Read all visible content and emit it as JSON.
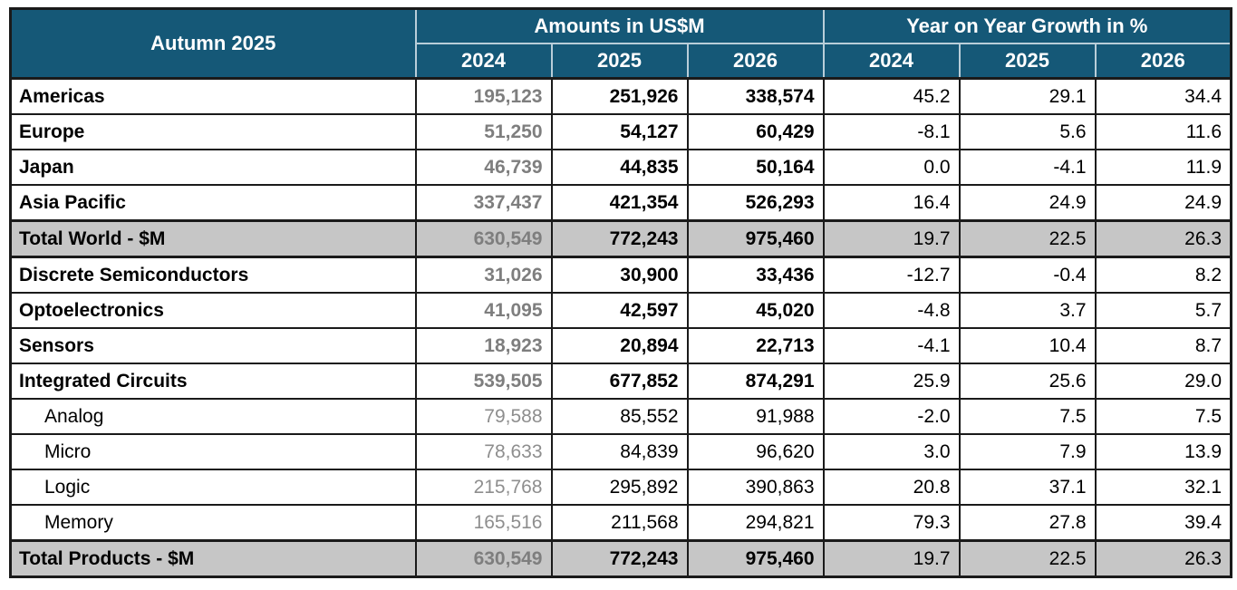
{
  "colors": {
    "header_bg": "#155877",
    "header_text": "#ffffff",
    "header_divider": "#b9ced9",
    "total_row_bg": "#c6c6c6",
    "muted_value_text": "#7e7e7e",
    "border": "#1a1a1a"
  },
  "header": {
    "title": "Autumn 2025",
    "groups": [
      {
        "label": "Amounts in US$M",
        "years": [
          "2024",
          "2025",
          "2026"
        ]
      },
      {
        "label": "Year on Year Growth in %",
        "years": [
          "2024",
          "2025",
          "2026"
        ]
      }
    ]
  },
  "rows": [
    {
      "label": "Americas",
      "style": "main",
      "amounts": [
        "195,123",
        "251,926",
        "338,574"
      ],
      "growth": [
        "45.2",
        "29.1",
        "34.4"
      ]
    },
    {
      "label": "Europe",
      "style": "main",
      "amounts": [
        "51,250",
        "54,127",
        "60,429"
      ],
      "growth": [
        "-8.1",
        "5.6",
        "11.6"
      ]
    },
    {
      "label": "Japan",
      "style": "main",
      "amounts": [
        "46,739",
        "44,835",
        "50,164"
      ],
      "growth": [
        "0.0",
        "-4.1",
        "11.9"
      ]
    },
    {
      "label": "Asia Pacific",
      "style": "main",
      "amounts": [
        "337,437",
        "421,354",
        "526,293"
      ],
      "growth": [
        "16.4",
        "24.9",
        "24.9"
      ]
    },
    {
      "label": "Total World - $M",
      "style": "total",
      "amounts": [
        "630,549",
        "772,243",
        "975,460"
      ],
      "growth": [
        "19.7",
        "22.5",
        "26.3"
      ]
    },
    {
      "label": "Discrete Semiconductors",
      "style": "main",
      "amounts": [
        "31,026",
        "30,900",
        "33,436"
      ],
      "growth": [
        "-12.7",
        "-0.4",
        "8.2"
      ]
    },
    {
      "label": "Optoelectronics",
      "style": "main",
      "amounts": [
        "41,095",
        "42,597",
        "45,020"
      ],
      "growth": [
        "-4.8",
        "3.7",
        "5.7"
      ]
    },
    {
      "label": "Sensors",
      "style": "main",
      "amounts": [
        "18,923",
        "20,894",
        "22,713"
      ],
      "growth": [
        "-4.1",
        "10.4",
        "8.7"
      ]
    },
    {
      "label": "Integrated Circuits",
      "style": "main",
      "amounts": [
        "539,505",
        "677,852",
        "874,291"
      ],
      "growth": [
        "25.9",
        "25.6",
        "29.0"
      ]
    },
    {
      "label": "Analog",
      "style": "sub",
      "amounts": [
        "79,588",
        "85,552",
        "91,988"
      ],
      "growth": [
        "-2.0",
        "7.5",
        "7.5"
      ]
    },
    {
      "label": "Micro",
      "style": "sub",
      "amounts": [
        "78,633",
        "84,839",
        "96,620"
      ],
      "growth": [
        "3.0",
        "7.9",
        "13.9"
      ]
    },
    {
      "label": "Logic",
      "style": "sub",
      "amounts": [
        "215,768",
        "295,892",
        "390,863"
      ],
      "growth": [
        "20.8",
        "37.1",
        "32.1"
      ]
    },
    {
      "label": "Memory",
      "style": "sub",
      "amounts": [
        "165,516",
        "211,568",
        "294,821"
      ],
      "growth": [
        "79.3",
        "27.8",
        "39.4"
      ]
    },
    {
      "label": "Total Products - $M",
      "style": "total",
      "amounts": [
        "630,549",
        "772,243",
        "975,460"
      ],
      "growth": [
        "19.7",
        "22.5",
        "26.3"
      ]
    }
  ],
  "chart_data": {
    "type": "table",
    "title": "Autumn 2025",
    "column_groups": [
      "Amounts in US$M",
      "Year on Year Growth in %"
    ],
    "columns": [
      "2024",
      "2025",
      "2026",
      "2024",
      "2025",
      "2026"
    ],
    "rows": [
      {
        "label": "Americas",
        "amounts_usd_m": [
          195123,
          251926,
          338574
        ],
        "yoy_growth_pct": [
          45.2,
          29.1,
          34.4
        ]
      },
      {
        "label": "Europe",
        "amounts_usd_m": [
          51250,
          54127,
          60429
        ],
        "yoy_growth_pct": [
          -8.1,
          5.6,
          11.6
        ]
      },
      {
        "label": "Japan",
        "amounts_usd_m": [
          46739,
          44835,
          50164
        ],
        "yoy_growth_pct": [
          0.0,
          -4.1,
          11.9
        ]
      },
      {
        "label": "Asia Pacific",
        "amounts_usd_m": [
          337437,
          421354,
          526293
        ],
        "yoy_growth_pct": [
          16.4,
          24.9,
          24.9
        ]
      },
      {
        "label": "Total World - $M",
        "amounts_usd_m": [
          630549,
          772243,
          975460
        ],
        "yoy_growth_pct": [
          19.7,
          22.5,
          26.3
        ]
      },
      {
        "label": "Discrete Semiconductors",
        "amounts_usd_m": [
          31026,
          30900,
          33436
        ],
        "yoy_growth_pct": [
          -12.7,
          -0.4,
          8.2
        ]
      },
      {
        "label": "Optoelectronics",
        "amounts_usd_m": [
          41095,
          42597,
          45020
        ],
        "yoy_growth_pct": [
          -4.8,
          3.7,
          5.7
        ]
      },
      {
        "label": "Sensors",
        "amounts_usd_m": [
          18923,
          20894,
          22713
        ],
        "yoy_growth_pct": [
          -4.1,
          10.4,
          8.7
        ]
      },
      {
        "label": "Integrated Circuits",
        "amounts_usd_m": [
          539505,
          677852,
          874291
        ],
        "yoy_growth_pct": [
          25.9,
          25.6,
          29.0
        ]
      },
      {
        "label": "Analog",
        "amounts_usd_m": [
          79588,
          85552,
          91988
        ],
        "yoy_growth_pct": [
          -2.0,
          7.5,
          7.5
        ]
      },
      {
        "label": "Micro",
        "amounts_usd_m": [
          78633,
          84839,
          96620
        ],
        "yoy_growth_pct": [
          3.0,
          7.9,
          13.9
        ]
      },
      {
        "label": "Logic",
        "amounts_usd_m": [
          215768,
          295892,
          390863
        ],
        "yoy_growth_pct": [
          20.8,
          37.1,
          32.1
        ]
      },
      {
        "label": "Memory",
        "amounts_usd_m": [
          165516,
          211568,
          294821
        ],
        "yoy_growth_pct": [
          79.3,
          27.8,
          39.4
        ]
      },
      {
        "label": "Total Products - $M",
        "amounts_usd_m": [
          630549,
          772243,
          975460
        ],
        "yoy_growth_pct": [
          19.7,
          22.5,
          26.3
        ]
      }
    ]
  }
}
